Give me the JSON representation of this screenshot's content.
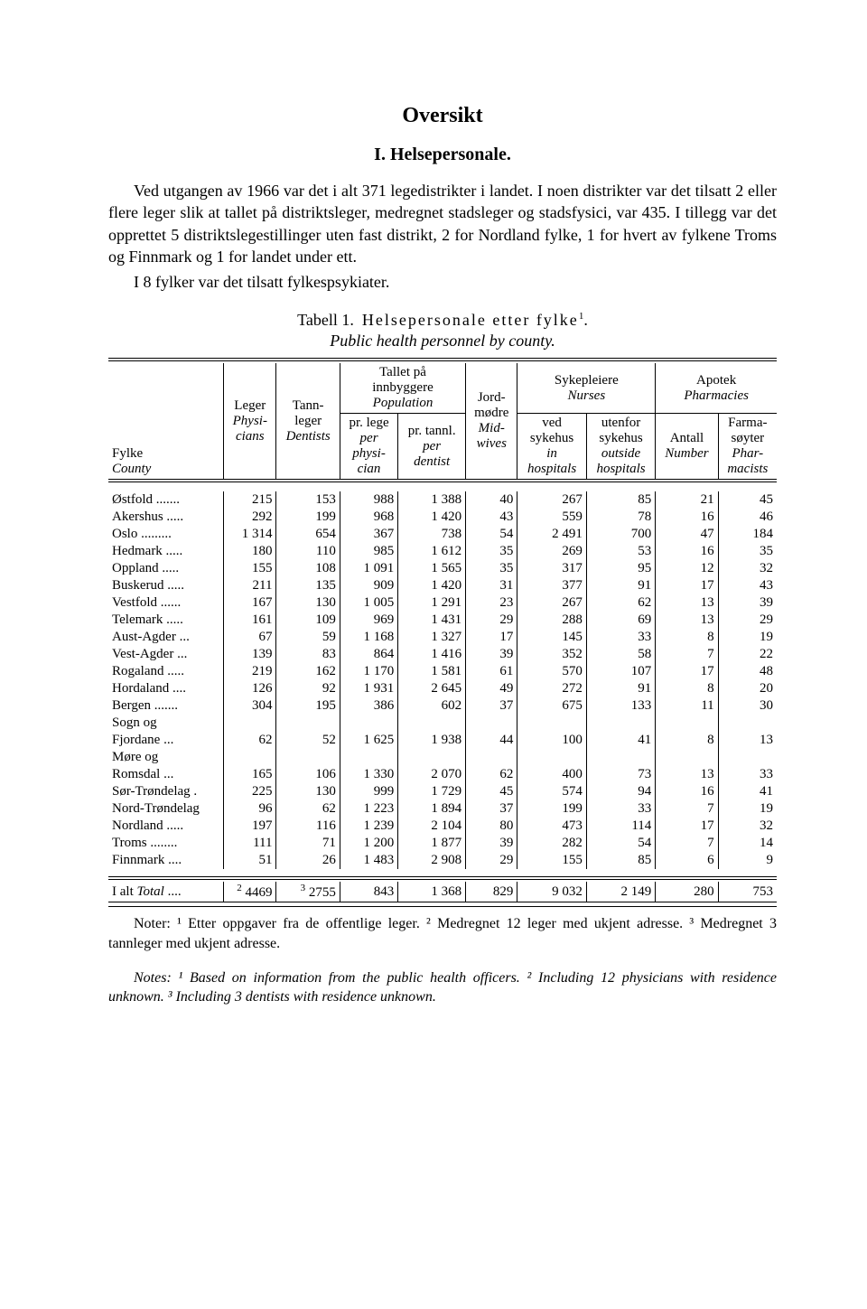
{
  "title": "Oversikt",
  "section": "I. Helsepersonale.",
  "paragraph1": "Ved utgangen av 1966 var det i alt 371 legedistrikter i landet. I noen distrikter var det tilsatt 2 eller flere leger slik at tallet på distriktsleger, medregnet stadsleger og stadsfysici, var 435. I tillegg var det opprettet 5 distriktslegestillinger uten fast distrikt, 2 for Nordland fylke, 1 for hvert av fylkene Troms og Finnmark og 1 for landet under ett.",
  "paragraph2": "I 8 fylker var det tilsatt fylkespsykiater.",
  "table_caption_label": "Tabell 1.",
  "table_caption_text": "Helsepersonale etter fylke",
  "table_caption_sup": "1",
  "table_subcaption": "Public health personnel by county.",
  "headers": {
    "fylke": "Fylke",
    "county": "County",
    "leger": "Leger",
    "physicians": "Physi-\ncians",
    "tannleger": "Tann-\nleger",
    "dentists": "Dentists",
    "tallet": "Tallet på\ninnbyggere",
    "population": "Population",
    "prlege": "pr. lege",
    "per_physician": "per\nphysi-\ncian",
    "prtannl": "pr. tannl.",
    "per_dentist": "per\ndentist",
    "jordmodre": "Jord-\nmødre",
    "midwives": "Mid-\nwives",
    "sykepleiere": "Sykepleiere",
    "nurses": "Nurses",
    "ved_sykehus": "ved\nsykehus",
    "in_hospitals": "in\nhospitals",
    "utenfor_sykehus": "utenfor\nsykehus",
    "outside_hospitals": "outside\nhospitals",
    "apotek": "Apotek",
    "pharmacies": "Pharmacies",
    "antall": "Antall",
    "number": "Number",
    "farmasoyter": "Farma-\nsøyter",
    "pharmacists": "Phar-\nmacists"
  },
  "rows": [
    {
      "name": "Østfold .......",
      "v": [
        "215",
        "153",
        "988",
        "1 388",
        "40",
        "267",
        "85",
        "21",
        "45"
      ]
    },
    {
      "name": "Akershus .....",
      "v": [
        "292",
        "199",
        "968",
        "1 420",
        "43",
        "559",
        "78",
        "16",
        "46"
      ]
    },
    {
      "name": "Oslo .........",
      "v": [
        "1 314",
        "654",
        "367",
        "738",
        "54",
        "2 491",
        "700",
        "47",
        "184"
      ]
    },
    {
      "name": "Hedmark .....",
      "v": [
        "180",
        "110",
        "985",
        "1 612",
        "35",
        "269",
        "53",
        "16",
        "35"
      ]
    },
    {
      "name": "Oppland .....",
      "v": [
        "155",
        "108",
        "1 091",
        "1 565",
        "35",
        "317",
        "95",
        "12",
        "32"
      ]
    },
    {
      "name": "Buskerud .....",
      "v": [
        "211",
        "135",
        "909",
        "1 420",
        "31",
        "377",
        "91",
        "17",
        "43"
      ]
    },
    {
      "name": "Vestfold ......",
      "v": [
        "167",
        "130",
        "1 005",
        "1 291",
        "23",
        "267",
        "62",
        "13",
        "39"
      ]
    },
    {
      "name": "Telemark .....",
      "v": [
        "161",
        "109",
        "969",
        "1 431",
        "29",
        "288",
        "69",
        "13",
        "29"
      ]
    },
    {
      "name": "Aust-Agder ...",
      "v": [
        "67",
        "59",
        "1 168",
        "1 327",
        "17",
        "145",
        "33",
        "8",
        "19"
      ]
    },
    {
      "name": "Vest-Agder ...",
      "v": [
        "139",
        "83",
        "864",
        "1 416",
        "39",
        "352",
        "58",
        "7",
        "22"
      ]
    },
    {
      "name": "Rogaland .....",
      "v": [
        "219",
        "162",
        "1 170",
        "1 581",
        "61",
        "570",
        "107",
        "17",
        "48"
      ]
    },
    {
      "name": "Hordaland ....",
      "v": [
        "126",
        "92",
        "1 931",
        "2 645",
        "49",
        "272",
        "91",
        "8",
        "20"
      ]
    },
    {
      "name": "Bergen .......",
      "v": [
        "304",
        "195",
        "386",
        "602",
        "37",
        "675",
        "133",
        "11",
        "30"
      ]
    },
    {
      "name": "Sogn og",
      "v": [
        "",
        "",
        "",
        "",
        "",
        "",
        "",
        "",
        ""
      ]
    },
    {
      "name": "  Fjordane ...",
      "v": [
        "62",
        "52",
        "1 625",
        "1 938",
        "44",
        "100",
        "41",
        "8",
        "13"
      ]
    },
    {
      "name": "Møre og",
      "v": [
        "",
        "",
        "",
        "",
        "",
        "",
        "",
        "",
        ""
      ]
    },
    {
      "name": "  Romsdal ...",
      "v": [
        "165",
        "106",
        "1 330",
        "2 070",
        "62",
        "400",
        "73",
        "13",
        "33"
      ]
    },
    {
      "name": "Sør-Trøndelag .",
      "v": [
        "225",
        "130",
        "999",
        "1 729",
        "45",
        "574",
        "94",
        "16",
        "41"
      ]
    },
    {
      "name": "Nord-Trøndelag",
      "v": [
        "96",
        "62",
        "1 223",
        "1 894",
        "37",
        "199",
        "33",
        "7",
        "19"
      ]
    },
    {
      "name": "Nordland .....",
      "v": [
        "197",
        "116",
        "1 239",
        "2 104",
        "80",
        "473",
        "114",
        "17",
        "32"
      ]
    },
    {
      "name": "Troms ........",
      "v": [
        "111",
        "71",
        "1 200",
        "1 877",
        "39",
        "282",
        "54",
        "7",
        "14"
      ]
    },
    {
      "name": "Finnmark ....",
      "v": [
        "51",
        "26",
        "1 483",
        "2 908",
        "29",
        "155",
        "85",
        "6",
        "9"
      ]
    }
  ],
  "total": {
    "name_prefix": "I alt ",
    "name_italic": "Total",
    "name_suffix": " ....",
    "v": [
      "4469",
      "2755",
      "843",
      "1 368",
      "829",
      "9 032",
      "2 149",
      "280",
      "753"
    ],
    "sup1": "2",
    "sup2": "3"
  },
  "notes_no": "Noter: ¹ Etter oppgaver fra de offentlige leger. ² Medregnet 12 leger med ukjent adresse. ³ Medregnet 3 tannleger med ukjent adresse.",
  "notes_en": "Notes: ¹ Based on information from the public health officers. ² Including 12 physicians with residence unknown. ³ Including 3 dentists with residence unknown."
}
